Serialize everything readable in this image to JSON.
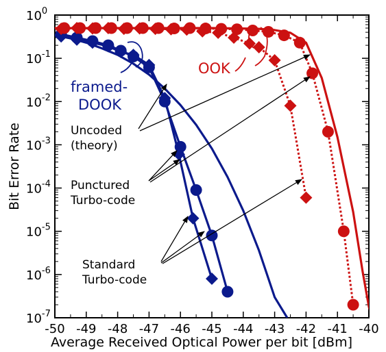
{
  "chart_data": {
    "type": "line",
    "xlabel": "Average Received Optical Power per bit [dBm]",
    "ylabel": "Bit Error Rate",
    "xlim": [
      -50,
      -40
    ],
    "ylim": [
      1e-07,
      1
    ],
    "yscale": "log",
    "x_ticks": [
      "-50",
      "-49",
      "-48",
      "-47",
      "-46",
      "-45",
      "-44",
      "-43",
      "-42",
      "-41",
      "-40"
    ],
    "y_ticks": [
      {
        "value": 1,
        "base": "10",
        "exp": "0"
      },
      {
        "value": 0.1,
        "base": "10",
        "exp": "-1"
      },
      {
        "value": 0.01,
        "base": "10",
        "exp": "-2"
      },
      {
        "value": 0.001,
        "base": "10",
        "exp": "-3"
      },
      {
        "value": 0.0001,
        "base": "10",
        "exp": "-4"
      },
      {
        "value": 1e-05,
        "base": "10",
        "exp": "-5"
      },
      {
        "value": 1e-06,
        "base": "10",
        "exp": "-6"
      },
      {
        "value": 1e-07,
        "base": "10",
        "exp": "-7"
      }
    ],
    "colors": {
      "dook": "#0b1a8c",
      "ook": "#cc1111"
    },
    "series": [
      {
        "group": "dook",
        "kind": "uncoded",
        "style": "solid",
        "marker": "none",
        "x": [
          -50,
          -49.5,
          -49,
          -48.5,
          -48,
          -47.5,
          -47,
          -46.5,
          -46,
          -45.5,
          -45,
          -44.5,
          -44,
          -43.5,
          -43,
          -42.6
        ],
        "y": [
          0.35,
          0.29,
          0.23,
          0.17,
          0.12,
          0.075,
          0.042,
          0.02,
          0.0083,
          0.0029,
          0.00082,
          0.00018,
          3e-05,
          3.6e-06,
          3e-07,
          1e-07
        ]
      },
      {
        "group": "dook",
        "kind": "punctured",
        "style": "solid",
        "marker": "diamond",
        "x": [
          -49.8,
          -49.3,
          -48.8,
          -48.3,
          -47.9,
          -47.5,
          -47.0,
          -46.5,
          -46.05,
          -45.6,
          -45.0
        ],
        "y": [
          0.32,
          0.27,
          0.23,
          0.19,
          0.14,
          0.12,
          0.07,
          0.012,
          0.0006,
          2e-05,
          8e-07
        ]
      },
      {
        "group": "dook",
        "kind": "standard",
        "style": "solid",
        "marker": "circle",
        "x": [
          -49.8,
          -49.3,
          -48.8,
          -48.3,
          -47.9,
          -47.5,
          -47.0,
          -46.5,
          -46.0,
          -45.5,
          -45.0,
          -44.5
        ],
        "y": [
          0.36,
          0.3,
          0.25,
          0.2,
          0.15,
          0.11,
          0.062,
          0.01,
          0.0009,
          9e-05,
          8e-06,
          4e-07
        ]
      },
      {
        "group": "ook",
        "kind": "uncoded",
        "style": "solid",
        "marker": "none",
        "x": [
          -50,
          -48,
          -46,
          -45,
          -44,
          -43.5,
          -43,
          -42.5,
          -42,
          -41.5,
          -41,
          -40.5,
          -40.2,
          -40.0,
          -39.9
        ],
        "y": [
          0.5,
          0.5,
          0.5,
          0.5,
          0.49,
          0.48,
          0.45,
          0.39,
          0.23,
          0.035,
          0.0015,
          2.8e-05,
          1.2e-06,
          1.8e-07,
          1e-07
        ]
      },
      {
        "group": "ook",
        "kind": "punctured",
        "style": "dotted",
        "marker": "diamond",
        "x": [
          -49.8,
          -49.3,
          -48.8,
          -48.3,
          -47.8,
          -47.3,
          -46.8,
          -46.3,
          -45.8,
          -45.3,
          -44.8,
          -44.3,
          -43.8,
          -43.5,
          -43.0,
          -42.5,
          -42.0
        ],
        "y": [
          0.48,
          0.5,
          0.49,
          0.5,
          0.48,
          0.49,
          0.48,
          0.47,
          0.46,
          0.42,
          0.39,
          0.3,
          0.22,
          0.18,
          0.09,
          0.008,
          6e-05
        ]
      },
      {
        "group": "ook",
        "kind": "standard",
        "style": "dotted",
        "marker": "circle",
        "x": [
          -49.7,
          -49.2,
          -48.7,
          -48.2,
          -47.7,
          -47.2,
          -46.7,
          -46.2,
          -45.7,
          -45.2,
          -44.7,
          -44.2,
          -43.7,
          -43.2,
          -42.7,
          -42.2,
          -41.8,
          -41.3,
          -40.8,
          -40.5
        ],
        "y": [
          0.5,
          0.5,
          0.5,
          0.5,
          0.5,
          0.5,
          0.5,
          0.49,
          0.5,
          0.49,
          0.48,
          0.47,
          0.44,
          0.41,
          0.34,
          0.23,
          0.045,
          0.002,
          1e-05,
          2e-07
        ]
      }
    ],
    "annotations": {
      "ook_label": "OOK",
      "dook_label_line1": "framed-",
      "dook_label_line2": "DOOK",
      "uncoded_line1": "Uncoded",
      "uncoded_line2": "(theory)",
      "punctured_line1": "Punctured",
      "punctured_line2": "Turbo-code",
      "standard_line1": "Standard",
      "standard_line2": "Turbo-code"
    }
  }
}
